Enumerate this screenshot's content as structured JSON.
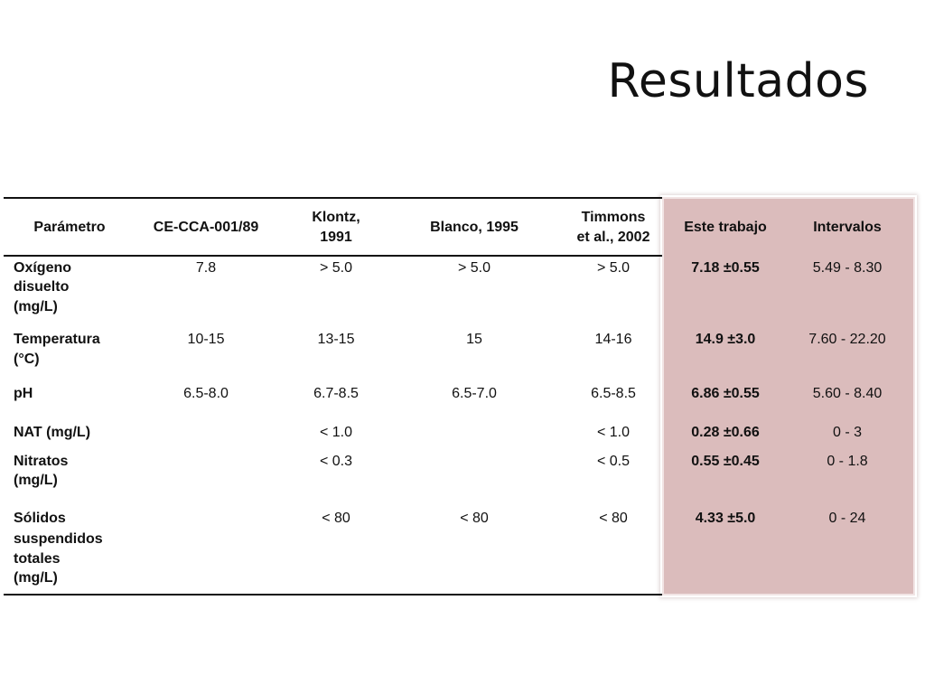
{
  "slide": {
    "title": "Resultados"
  },
  "table": {
    "headers": {
      "parametro": "Parámetro",
      "ce": "CE-CCA-001/89",
      "klontz_1": "Klontz,",
      "klontz_2": "1991",
      "blanco": "Blanco, 1995",
      "timmons_1": "Timmons",
      "timmons_2": "et al., 2002",
      "este": "Este trabajo",
      "intervalos": "Intervalos"
    },
    "rows": [
      {
        "param": [
          "Oxígeno",
          "disuelto",
          "(mg/L)"
        ],
        "ce": "7.8",
        "klontz": "> 5.0",
        "blanco": "> 5.0",
        "timmons": "> 5.0",
        "este": "7.18 ±0.55",
        "intervalos": "5.49 - 8.30"
      },
      {
        "param": [
          "Temperatura",
          "(°C)"
        ],
        "ce": "10-15",
        "klontz": "13-15",
        "blanco": "15",
        "timmons": "14-16",
        "este": "14.9 ±3.0",
        "intervalos": "7.60 - 22.20"
      },
      {
        "param": [
          "pH"
        ],
        "ce": "6.5-8.0",
        "klontz": "6.7-8.5",
        "blanco": "6.5-7.0",
        "timmons": "6.5-8.5",
        "este": "6.86 ±0.55",
        "intervalos": "5.60 - 8.40"
      },
      {
        "param": [
          "NAT (mg/L)"
        ],
        "ce": "",
        "klontz": "< 1.0",
        "blanco": "",
        "timmons": "< 1.0",
        "este": "0.28 ±0.66",
        "intervalos": "0 - 3"
      },
      {
        "param": [
          "Nitratos",
          "(mg/L)"
        ],
        "ce": "",
        "klontz": "< 0.3",
        "blanco": "",
        "timmons": "< 0.5",
        "este": "0.55 ±0.45",
        "intervalos": "0 - 1.8"
      },
      {
        "param": [
          "Sólidos",
          "suspendidos",
          "totales",
          "(mg/L)"
        ],
        "ce": "",
        "klontz": "< 80",
        "blanco": "< 80",
        "timmons": "< 80",
        "este": "4.33 ±5.0",
        "intervalos": "0 - 24"
      }
    ]
  },
  "colors": {
    "highlight": "#dbbcbc",
    "rule": "#111111"
  }
}
